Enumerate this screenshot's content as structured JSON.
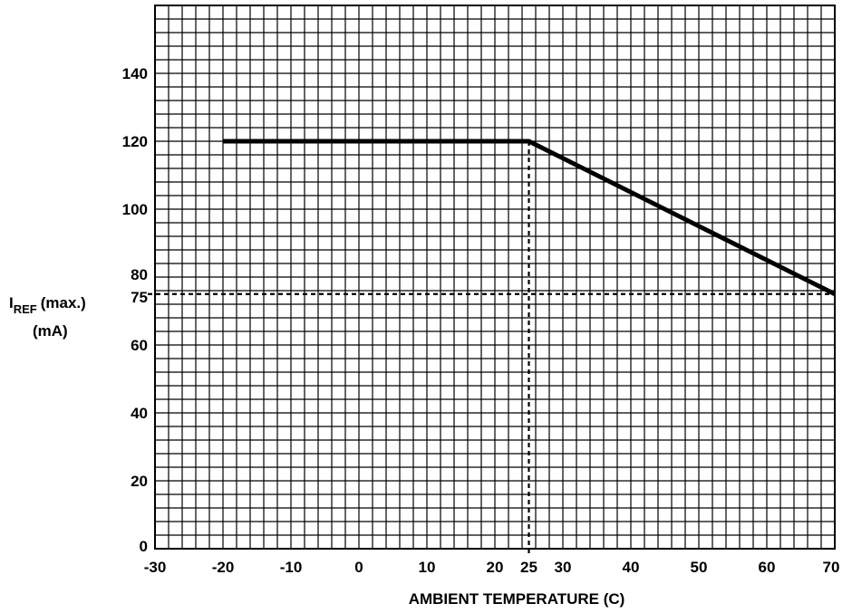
{
  "chart_data": {
    "type": "line",
    "title": "",
    "xlabel": "AMBIENT TEMPERATURE (C)",
    "ylabel": {
      "main": "I",
      "subscript": "REF",
      "suffix": "(max.)",
      "unit": "(mA)"
    },
    "xlim": [
      -30,
      70
    ],
    "ylim": [
      0,
      160
    ],
    "x_ticks": [
      "-30",
      "-20",
      "-10",
      "0",
      "10",
      "20",
      "25",
      "30",
      "40",
      "50",
      "60",
      "70"
    ],
    "y_ticks": [
      "0",
      "20",
      "40",
      "60",
      "75",
      "80",
      "100",
      "120",
      "140"
    ],
    "grid": true,
    "grid_minor_x_step": 2,
    "grid_minor_y_step": 4,
    "series": [
      {
        "x": [
          -20,
          25,
          70
        ],
        "y": [
          120,
          120,
          75
        ]
      }
    ],
    "reference_lines": [
      {
        "axis": "x",
        "value": 25,
        "style": "dashed"
      },
      {
        "axis": "y",
        "value": 75,
        "style": "dashed"
      }
    ]
  }
}
